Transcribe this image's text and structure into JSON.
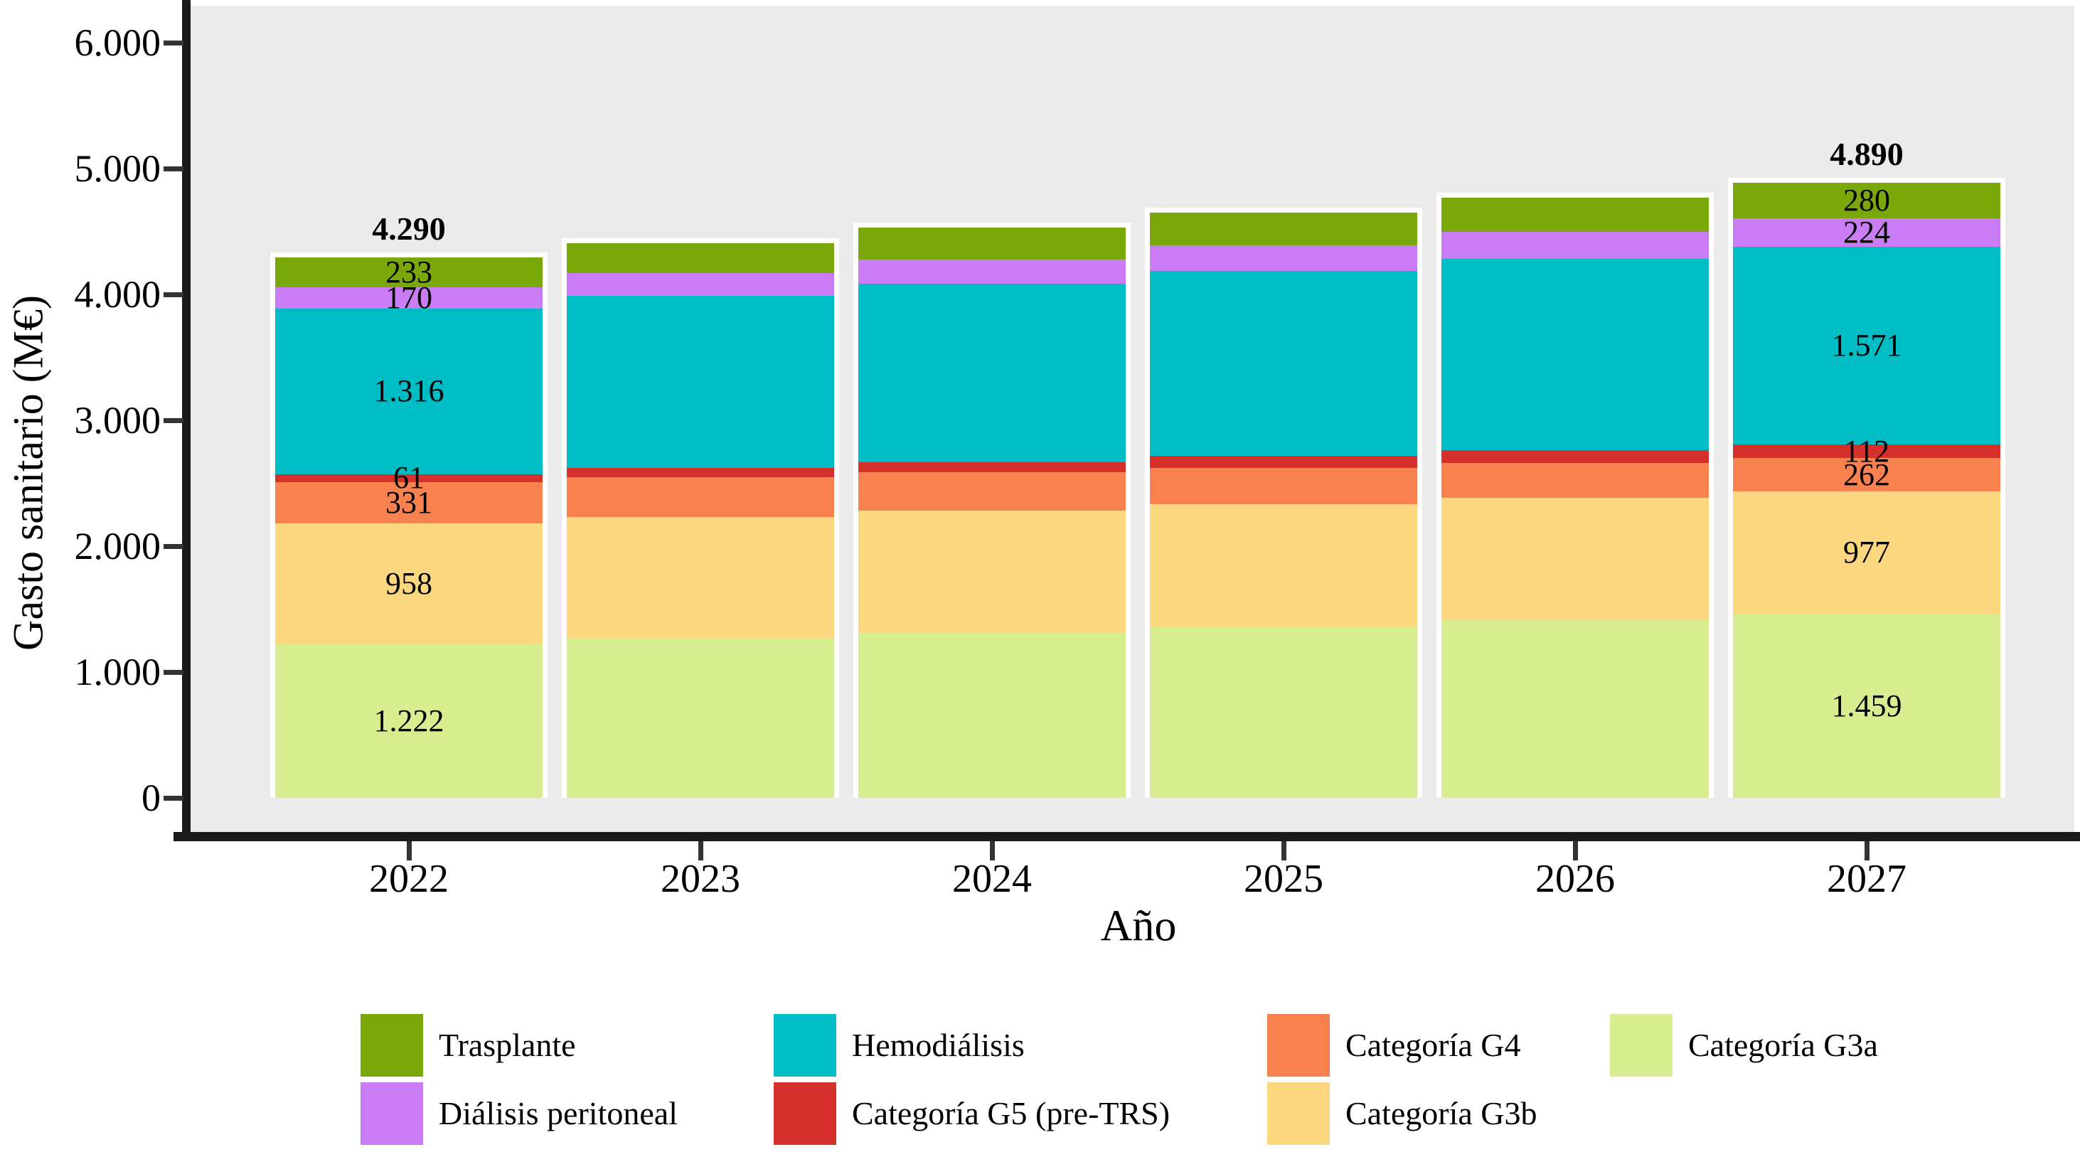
{
  "chart_data": {
    "type": "bar",
    "stacked": true,
    "title": "",
    "xlabel": "Año",
    "ylabel": "Gasto sanitario (M€)",
    "ylim": [
      0,
      6000
    ],
    "grid": false,
    "legend_position": "bottom",
    "ytick_labels": [
      "0",
      "1.000",
      "2.000",
      "3.000",
      "4.000",
      "5.000",
      "6.000"
    ],
    "categories": [
      "2022",
      "2023",
      "2024",
      "2025",
      "2026",
      "2027"
    ],
    "series": [
      {
        "name": "Categoría G3a",
        "color": "#d8ec90",
        "values": [
          1222,
          1269,
          1317,
          1364,
          1412,
          1459
        ]
      },
      {
        "name": "Categoría G3b",
        "color": "#fbd87f",
        "values": [
          958,
          962,
          966,
          970,
          973,
          977
        ]
      },
      {
        "name": "Categoría G4",
        "color": "#f8824f",
        "values": [
          331,
          317,
          303,
          290,
          276,
          262
        ]
      },
      {
        "name": "Categoría G5 (pre-TRS)",
        "color": "#d5302c",
        "values": [
          61,
          71,
          81,
          92,
          102,
          112
        ]
      },
      {
        "name": "Hemodiálisis",
        "color": "#00bcc4",
        "values": [
          1316,
          1367,
          1418,
          1469,
          1520,
          1571
        ]
      },
      {
        "name": "Diálisis peritoneal",
        "color": "#c97cf4",
        "values": [
          170,
          181,
          192,
          202,
          213,
          224
        ]
      },
      {
        "name": "Trasplante",
        "color": "#7aa80a",
        "values": [
          233,
          242,
          252,
          261,
          271,
          280
        ]
      }
    ],
    "totals_labels": {
      "2022": "4.290",
      "2027": "4.890"
    },
    "segment_labels": {
      "2022": [
        "1.222",
        "958",
        "331",
        "61",
        "1.316",
        "170",
        "233"
      ],
      "2027": [
        "1.459",
        "977",
        "262",
        "112",
        "1.571",
        "224",
        "280"
      ]
    },
    "legend": {
      "columns": [
        [
          "Trasplante",
          "Diálisis peritoneal"
        ],
        [
          "Hemodiálisis",
          "Categoría G5 (pre-TRS)"
        ],
        [
          "Categoría G4",
          "Categoría G3b"
        ],
        [
          "Categoría G3a"
        ]
      ]
    },
    "colors": {
      "panel_background": "#ebebeb",
      "axis_line": "#1a1a1a",
      "tick_mark": "#333333",
      "text": "#000000"
    }
  }
}
